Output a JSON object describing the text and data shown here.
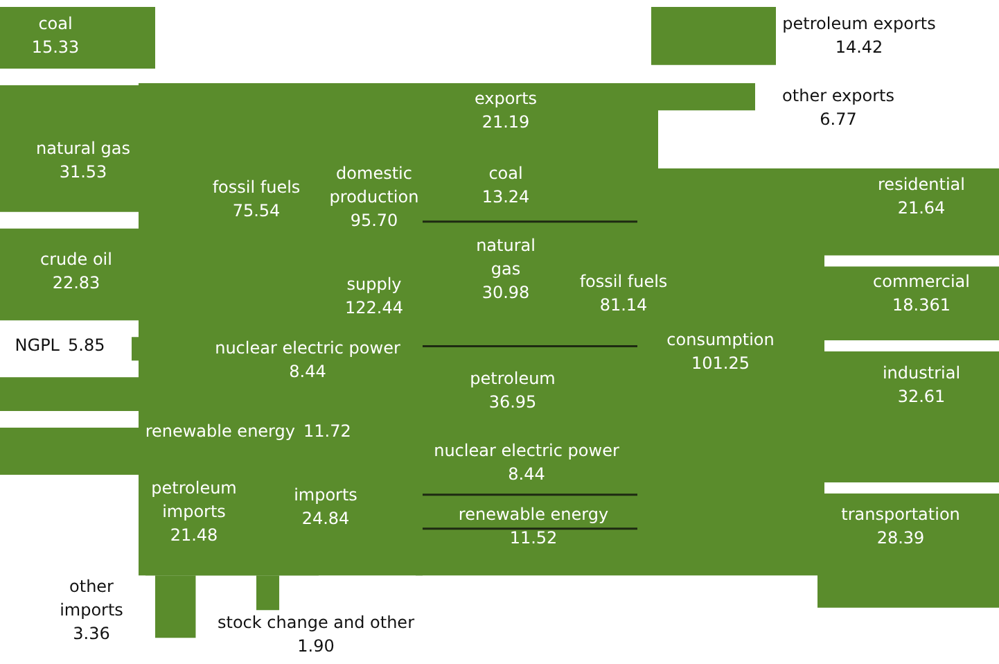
{
  "chart_data": {
    "type": "other",
    "color": "#5a8c2c",
    "categories": [
      "coal",
      "natural gas",
      "crude oil",
      "NGPL",
      "nuclear electric power",
      "renewable energy",
      "fossil fuels",
      "domestic\nproduction",
      "supply",
      "petroleum\nimports",
      "imports",
      "other\nimports",
      "stock change and other",
      "exports",
      "petroleum exports",
      "other exports",
      "coal",
      "natural\ngas",
      "petroleum",
      "nuclear electric power",
      "renewable energy",
      "fossil fuels",
      "consumption",
      "residential",
      "commercial",
      "industrial",
      "transportation"
    ],
    "value_labels": [
      "15.33",
      "31.53",
      "22.83",
      "5.85",
      "8.44",
      "11.72",
      "75.54",
      "95.70",
      "122.44",
      "21.48",
      "24.84",
      "3.36",
      "1.90",
      "21.19",
      "14.42",
      "6.77",
      "13.24",
      "30.98",
      "36.95",
      "8.44",
      "11.52",
      "81.14",
      "101.25",
      "21.64",
      "18.361",
      "32.61",
      "28.39"
    ],
    "values": [
      15.33,
      31.53,
      22.83,
      5.85,
      8.44,
      11.72,
      75.54,
      95.7,
      122.44,
      21.48,
      24.84,
      3.36,
      1.9,
      21.19,
      14.42,
      6.77,
      13.24,
      30.98,
      36.95,
      8.44,
      11.52,
      81.14,
      101.25,
      21.64,
      18.361,
      32.61,
      28.39
    ]
  }
}
